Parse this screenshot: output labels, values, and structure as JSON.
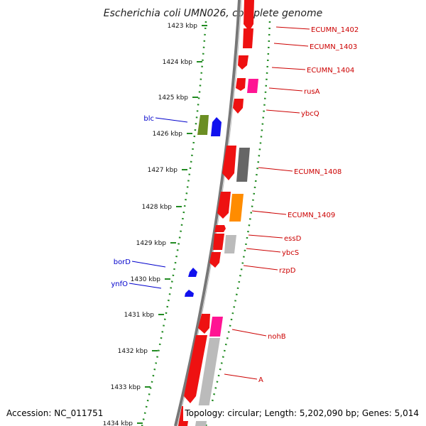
{
  "title": "Escherichia coli UMN026, complete genome",
  "footer": {
    "accession": "Accession: NC_011751",
    "topology": "Topology: circular; Length: 5,202,090 bp; Genes: 5,014"
  },
  "colors": {
    "red": "#ee1111",
    "blue": "#1111ee",
    "green": "#6b8e23",
    "gray": "#666666",
    "light_gray": "#bbbbbb",
    "orange": "#ff8c00",
    "pink": "#ff1493",
    "backbone": "#777777",
    "tick": "#228b22",
    "label_red": "#cc0000",
    "label_blue": "#0000cc"
  },
  "ticks": [
    "1423 kbp",
    "1424 kbp",
    "1425 kbp",
    "1426 kbp",
    "1427 kbp",
    "1428 kbp",
    "1429 kbp",
    "1430 kbp",
    "1431 kbp",
    "1432 kbp",
    "1433 kbp",
    "1434 kbp"
  ],
  "labels_right": [
    "ECUMN_1402",
    "ECUMN_1403",
    "ECUMN_1404",
    "rusA",
    "ybcQ",
    "ECUMN_1408",
    "ECUMN_1409",
    "essD",
    "ybcS",
    "rzpD",
    "nohB",
    "A"
  ],
  "labels_left": [
    "blc",
    "borD",
    "ynfO"
  ]
}
